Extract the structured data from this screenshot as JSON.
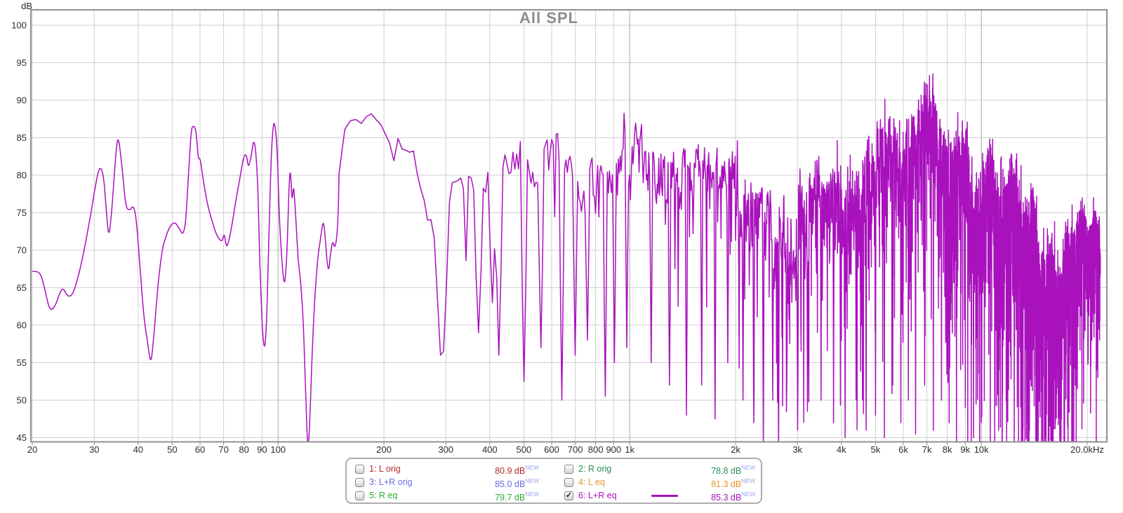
{
  "title": "All SPL",
  "axis": {
    "unit_label": "dB"
  },
  "colors": {
    "trace": "#a911bd",
    "grid_minor": "#cfcfcf",
    "grid_decade": "#a6a6a6",
    "plot_border": "#909090",
    "axis_text": "#2b2b2b",
    "title_text": "#8c8c8c",
    "badge": "#9aa4f0"
  },
  "legend": {
    "badge": "NEW",
    "entries": [
      {
        "label": "1: L orig",
        "value": "80.9 dB",
        "color": "#b02b2b",
        "checked": false,
        "line_sample": false
      },
      {
        "label": "2: R orig",
        "value": "78.8 dB",
        "color": "#2e8b57",
        "checked": false,
        "line_sample": false
      },
      {
        "label": "3: L+R orig",
        "value": "85.0 dB",
        "color": "#6a6ae0",
        "checked": false,
        "line_sample": false
      },
      {
        "label": "4: L eq",
        "value": "81.3 dB",
        "color": "#e8932f",
        "checked": false,
        "line_sample": false
      },
      {
        "label": "5: R eq",
        "value": "79.7 dB",
        "color": "#2eab2e",
        "checked": false,
        "line_sample": false
      },
      {
        "label": "6: L+R eq",
        "value": "85.3 dB",
        "color": "#a911bd",
        "checked": true,
        "line_sample": true
      }
    ]
  },
  "chart_data": {
    "type": "line",
    "title": "All SPL",
    "x_scale": "log",
    "xlim": [
      20,
      20000
    ],
    "ylim": [
      44.4,
      102
    ],
    "ylabel": "dB",
    "grid": true,
    "legend_position": "bottom",
    "series_name": "6: L+R eq",
    "y_ticks": [
      45,
      50,
      55,
      60,
      65,
      70,
      75,
      80,
      85,
      90,
      95,
      100
    ],
    "x_ticks": [
      {
        "f": 20,
        "label": "20"
      },
      {
        "f": 30,
        "label": "30"
      },
      {
        "f": 40,
        "label": "40"
      },
      {
        "f": 50,
        "label": "50"
      },
      {
        "f": 60,
        "label": "60"
      },
      {
        "f": 70,
        "label": "70"
      },
      {
        "f": 80,
        "label": "80"
      },
      {
        "f": 90,
        "label": "90"
      },
      {
        "f": 100,
        "label": "100"
      },
      {
        "f": 200,
        "label": "200"
      },
      {
        "f": 300,
        "label": "300"
      },
      {
        "f": 400,
        "label": "400"
      },
      {
        "f": 500,
        "label": "500"
      },
      {
        "f": 600,
        "label": "600"
      },
      {
        "f": 700,
        "label": "700"
      },
      {
        "f": 800,
        "label": "800"
      },
      {
        "f": 900,
        "label": "900"
      },
      {
        "f": 1000,
        "label": "1k"
      },
      {
        "f": 2000,
        "label": "2k"
      },
      {
        "f": 3000,
        "label": "3k"
      },
      {
        "f": 4000,
        "label": "4k"
      },
      {
        "f": 5000,
        "label": "5k"
      },
      {
        "f": 6000,
        "label": "6k"
      },
      {
        "f": 7000,
        "label": "7k"
      },
      {
        "f": 8000,
        "label": "8k"
      },
      {
        "f": 9000,
        "label": "9k"
      },
      {
        "f": 10000,
        "label": "10k"
      },
      {
        "f": 20000,
        "label": "20.0kHz"
      }
    ],
    "decade_gridlines": [
      100,
      1000,
      10000
    ],
    "lf_points": [
      [
        20,
        67.2
      ],
      [
        21,
        66.9
      ],
      [
        21.6,
        65.2
      ],
      [
        22.4,
        62.3
      ],
      [
        23.2,
        62.6
      ],
      [
        24.3,
        64.8
      ],
      [
        25.3,
        63.9
      ],
      [
        26.2,
        64.5
      ],
      [
        27.5,
        68
      ],
      [
        29,
        73.5
      ],
      [
        30.5,
        79.5
      ],
      [
        31.3,
        80.9
      ],
      [
        32,
        79
      ],
      [
        32.9,
        72.5
      ],
      [
        33.6,
        75
      ],
      [
        34.6,
        83
      ],
      [
        35.2,
        84.6
      ],
      [
        36,
        81
      ],
      [
        36.9,
        76.2
      ],
      [
        37.8,
        75.4
      ],
      [
        38.8,
        75.7
      ],
      [
        39.6,
        73.5
      ],
      [
        40.6,
        67
      ],
      [
        41.5,
        61.5
      ],
      [
        42.6,
        57.5
      ],
      [
        43.5,
        55.4
      ],
      [
        44.4,
        59
      ],
      [
        45.6,
        65.5
      ],
      [
        46.8,
        69.8
      ],
      [
        48,
        71.8
      ],
      [
        49.4,
        73.2
      ],
      [
        51,
        73.6
      ],
      [
        52.5,
        72.8
      ],
      [
        53.6,
        72.3
      ],
      [
        54.6,
        74
      ],
      [
        55.6,
        80
      ],
      [
        56.6,
        85.5
      ],
      [
        57.4,
        86.5
      ],
      [
        58.4,
        85.8
      ],
      [
        59.3,
        82.5
      ],
      [
        60.1,
        82
      ],
      [
        61,
        80
      ],
      [
        62.2,
        77.5
      ],
      [
        63.5,
        75.5
      ],
      [
        65,
        73.8
      ],
      [
        66.6,
        72.3
      ],
      [
        68,
        71.5
      ],
      [
        69.3,
        71.3
      ],
      [
        70.3,
        72
      ],
      [
        71.4,
        70.6
      ],
      [
        72.6,
        71.5
      ],
      [
        74,
        73.5
      ],
      [
        75.8,
        76.5
      ],
      [
        77.8,
        79.5
      ],
      [
        79.8,
        82.3
      ],
      [
        81.2,
        82.6
      ],
      [
        82.4,
        81.3
      ],
      [
        83.8,
        82.5
      ],
      [
        85.2,
        84.4
      ],
      [
        86.4,
        83
      ],
      [
        87.6,
        78
      ],
      [
        88.8,
        68
      ],
      [
        90.2,
        60
      ],
      [
        91.5,
        57.2
      ],
      [
        92.8,
        61
      ],
      [
        94.2,
        72
      ],
      [
        95.6,
        82
      ],
      [
        96.8,
        86.3
      ],
      [
        98,
        86.5
      ],
      [
        99.4,
        83
      ],
      [
        101,
        74
      ],
      [
        102.8,
        68
      ],
      [
        104.4,
        65.8
      ],
      [
        106,
        70
      ],
      [
        107.4,
        78
      ],
      [
        108.4,
        80.3
      ],
      [
        109.6,
        77
      ],
      [
        110.8,
        78.2
      ],
      [
        112.4,
        74
      ],
      [
        114,
        69
      ],
      [
        116,
        65.5
      ],
      [
        118,
        60
      ],
      [
        120,
        50
      ],
      [
        121.5,
        44
      ],
      [
        123,
        47
      ],
      [
        125,
        56
      ],
      [
        127,
        63
      ],
      [
        129.5,
        68.5
      ],
      [
        132,
        71.5
      ],
      [
        134.5,
        73.6
      ],
      [
        136.5,
        71
      ],
      [
        138,
        68.3
      ],
      [
        139.5,
        67.6
      ],
      [
        141,
        69.5
      ],
      [
        143,
        71
      ],
      [
        145,
        70.5
      ],
      [
        147,
        72
      ],
      [
        148.5,
        76
      ]
    ],
    "envelope": [
      [
        149,
        80
      ],
      [
        153,
        84.5
      ],
      [
        158,
        86.2
      ],
      [
        166,
        86.3
      ],
      [
        175,
        85.8
      ],
      [
        190,
        86.8
      ],
      [
        205,
        85.3
      ],
      [
        215,
        83.8
      ],
      [
        228,
        84.3
      ],
      [
        240,
        81.8
      ],
      [
        255,
        79
      ],
      [
        268,
        74.5
      ],
      [
        282,
        72.3
      ],
      [
        295,
        72.2
      ],
      [
        310,
        75.5
      ],
      [
        330,
        79.2
      ],
      [
        350,
        78.4
      ],
      [
        370,
        75.2
      ],
      [
        395,
        78.3
      ],
      [
        420,
        79
      ],
      [
        450,
        81
      ],
      [
        480,
        82
      ],
      [
        510,
        80
      ],
      [
        545,
        79.4
      ],
      [
        580,
        81
      ],
      [
        620,
        82
      ],
      [
        660,
        82.4
      ],
      [
        700,
        81
      ],
      [
        750,
        80
      ],
      [
        800,
        79.4
      ],
      [
        850,
        80
      ],
      [
        900,
        81.4
      ],
      [
        950,
        82.4
      ],
      [
        1000,
        83
      ],
      [
        1060,
        83.4
      ],
      [
        1120,
        82
      ],
      [
        1200,
        80.4
      ],
      [
        1300,
        79.4
      ],
      [
        1400,
        79
      ],
      [
        1500,
        78
      ],
      [
        1600,
        77
      ],
      [
        1700,
        77.4
      ],
      [
        1800,
        77
      ],
      [
        1900,
        76.4
      ],
      [
        2000,
        77
      ],
      [
        2150,
        76.4
      ],
      [
        2300,
        76
      ],
      [
        2500,
        75.4
      ],
      [
        2700,
        75
      ],
      [
        2900,
        75.4
      ],
      [
        3100,
        76
      ],
      [
        3300,
        76.4
      ],
      [
        3600,
        77.4
      ],
      [
        3900,
        78.4
      ],
      [
        4200,
        79.4
      ],
      [
        4500,
        80.4
      ],
      [
        4800,
        81
      ],
      [
        5200,
        82
      ],
      [
        5600,
        82.4
      ],
      [
        6000,
        83
      ],
      [
        6500,
        83.4
      ],
      [
        7000,
        84
      ],
      [
        7500,
        83.4
      ],
      [
        8000,
        82.4
      ],
      [
        8500,
        81.4
      ],
      [
        9000,
        80.4
      ],
      [
        9500,
        79.4
      ],
      [
        10000,
        79
      ],
      [
        10700,
        77.4
      ],
      [
        11500,
        76
      ],
      [
        12300,
        74.4
      ],
      [
        13200,
        72.4
      ],
      [
        14000,
        70.4
      ],
      [
        15000,
        68
      ],
      [
        16000,
        66
      ],
      [
        17000,
        65.4
      ],
      [
        18000,
        68
      ],
      [
        19000,
        70.4
      ],
      [
        20000,
        71.4
      ],
      [
        22000,
        72
      ]
    ],
    "roughness": [
      [
        149,
        2.2
      ],
      [
        200,
        2.4
      ],
      [
        300,
        3
      ],
      [
        400,
        3.6
      ],
      [
        500,
        4.2
      ],
      [
        700,
        4.6
      ],
      [
        1000,
        5
      ],
      [
        1500,
        5.4
      ],
      [
        2000,
        6
      ],
      [
        3000,
        6.4
      ],
      [
        4000,
        7
      ],
      [
        6000,
        7.4
      ],
      [
        8000,
        7.4
      ],
      [
        10000,
        7.4
      ],
      [
        12000,
        7.4
      ],
      [
        14000,
        7.4
      ],
      [
        16000,
        7
      ],
      [
        18000,
        5.4
      ],
      [
        20000,
        4.2
      ],
      [
        22000,
        4
      ]
    ],
    "spike_prob": [
      [
        149,
        0.0
      ],
      [
        250,
        0.05
      ],
      [
        400,
        0.07
      ],
      [
        700,
        0.09
      ],
      [
        1000,
        0.11
      ],
      [
        2000,
        0.15
      ],
      [
        3000,
        0.18
      ],
      [
        4000,
        0.21
      ],
      [
        6000,
        0.25
      ],
      [
        9000,
        0.28
      ],
      [
        12000,
        0.31
      ],
      [
        16000,
        0.31
      ],
      [
        20000,
        0.2
      ],
      [
        22000,
        0.15
      ]
    ],
    "spike_depth": [
      [
        250,
        5
      ],
      [
        500,
        8
      ],
      [
        1000,
        10
      ],
      [
        2000,
        13
      ],
      [
        4000,
        15
      ],
      [
        8000,
        18
      ],
      [
        12000,
        21
      ],
      [
        16000,
        21
      ],
      [
        20000,
        12
      ],
      [
        22000,
        10
      ]
    ],
    "notches": [
      [
        288,
        56
      ],
      [
        293,
        56.5
      ],
      [
        374,
        59
      ],
      [
        405,
        63
      ],
      [
        423,
        56
      ],
      [
        500,
        52.5
      ],
      [
        560,
        57
      ],
      [
        640,
        50
      ],
      [
        700,
        56
      ],
      [
        760,
        58
      ],
      [
        850,
        50.5
      ],
      [
        905,
        55
      ],
      [
        980,
        57
      ],
      [
        1150,
        55
      ],
      [
        1300,
        52
      ],
      [
        1450,
        48
      ],
      [
        1600,
        52
      ],
      [
        1750,
        47.5
      ],
      [
        1900,
        55
      ],
      [
        2100,
        50
      ],
      [
        2250,
        47
      ],
      [
        2400,
        43.3
      ],
      [
        2550,
        50
      ],
      [
        2650,
        43.3
      ],
      [
        2800,
        52
      ],
      [
        3000,
        46
      ],
      [
        3200,
        48.5
      ],
      [
        3500,
        50
      ],
      [
        3800,
        47
      ],
      [
        4100,
        45
      ],
      [
        4400,
        50
      ],
      [
        4700,
        46
      ],
      [
        5000,
        48
      ],
      [
        5300,
        45
      ],
      [
        5600,
        52
      ],
      [
        5900,
        47
      ],
      [
        6200,
        50
      ],
      [
        6500,
        45.5
      ],
      [
        6900,
        52
      ],
      [
        7300,
        46
      ],
      [
        7700,
        50
      ],
      [
        8100,
        47
      ],
      [
        8500,
        44
      ],
      [
        9000,
        49
      ],
      [
        9500,
        45
      ],
      [
        10000,
        47
      ],
      [
        10600,
        43.3
      ],
      [
        11200,
        46
      ],
      [
        11800,
        44
      ],
      [
        12400,
        48
      ],
      [
        13000,
        44
      ],
      [
        13700,
        46
      ],
      [
        14400,
        43.3
      ],
      [
        15200,
        45
      ],
      [
        16000,
        43.3
      ],
      [
        16800,
        44
      ],
      [
        17600,
        47
      ],
      [
        18500,
        52
      ],
      [
        19300,
        55
      ]
    ],
    "fft_step_hz": 5.859,
    "seed": 1337
  }
}
